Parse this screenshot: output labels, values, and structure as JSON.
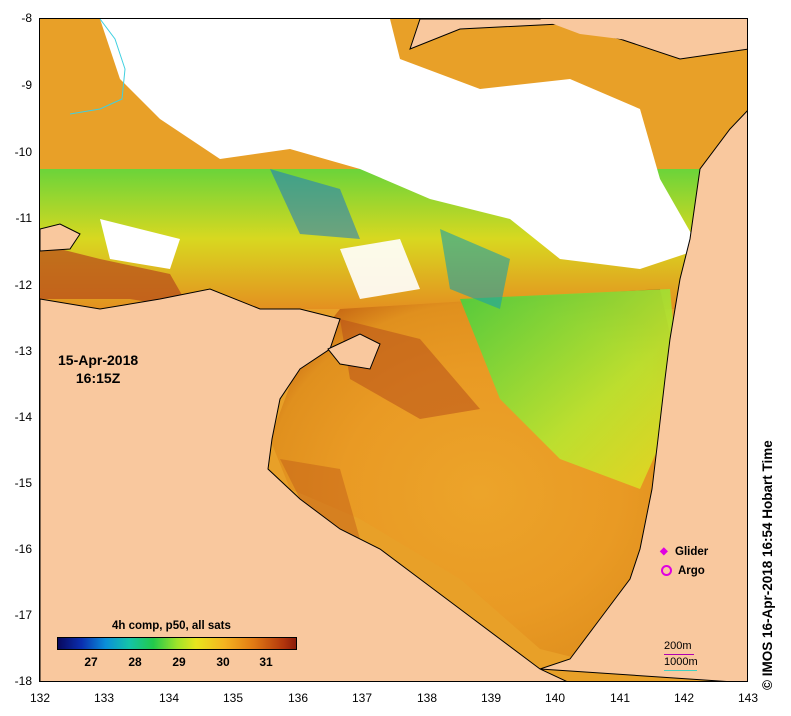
{
  "map": {
    "date": "15-Apr-2018",
    "time": "16:15Z",
    "y_ticks": [
      "-8",
      "-9",
      "-10",
      "-11",
      "-12",
      "-13",
      "-14",
      "-15",
      "-16",
      "-17",
      "-18"
    ],
    "x_ticks": [
      "132",
      "133",
      "134",
      "135",
      "136",
      "137",
      "138",
      "139",
      "140",
      "141",
      "142",
      "143"
    ],
    "lat_range": [
      -18,
      -8
    ],
    "lon_range": [
      132,
      143
    ],
    "colors": {
      "land": "#f9c89e",
      "cloud": "#ffffff",
      "coast": "#000000",
      "river": "#40d0e0"
    }
  },
  "colorbar": {
    "title": "4h comp, p50, all sats",
    "ticks": [
      "27",
      "28",
      "29",
      "30",
      "31"
    ],
    "colors": [
      "#08085e",
      "#0a8fd8",
      "#22c94b",
      "#e7e51e",
      "#e27b14",
      "#8a1c0a"
    ]
  },
  "legend": {
    "glider_label": "Glider",
    "argo_label": "Argo",
    "marker_color": "#e000e0"
  },
  "scale": {
    "label_200": "200m",
    "label_1000": "1000m"
  },
  "credit": "IMOS 16-Apr-2018 16:54 Hobart Time",
  "copyright": "©"
}
